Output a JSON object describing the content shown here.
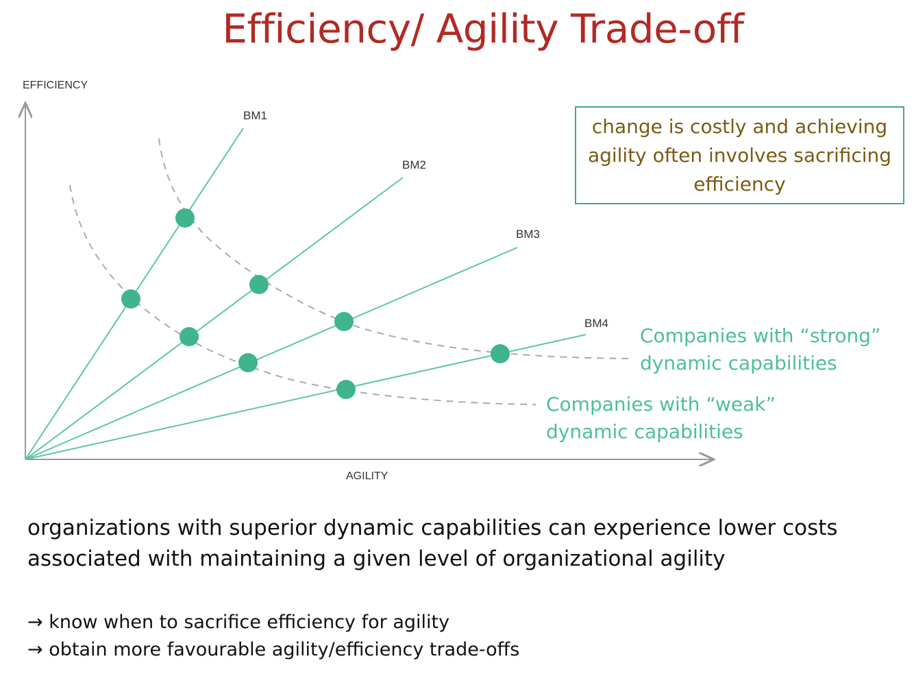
{
  "title": "Efficiency/ Agility Trade-off",
  "chart_data": {
    "type": "diagram",
    "y_axis_label": "EFFICIENCY",
    "x_axis_label": "AGILITY",
    "business_models": [
      "BM1",
      "BM2",
      "BM3",
      "BM4"
    ],
    "curves": [
      {
        "name": "Companies with “strong” dynamic capabilities",
        "style": "dashed",
        "intersects": [
          "BM1",
          "BM2",
          "BM3",
          "BM4"
        ]
      },
      {
        "name": "Companies with “weak” dynamic capabilities",
        "style": "dashed",
        "intersects": [
          "BM1",
          "BM2",
          "BM3",
          "BM4"
        ]
      }
    ],
    "colors": {
      "line": "#5cc6a6",
      "dot": "#3fb48f",
      "curve": "#aaaaaa",
      "axis": "#999999"
    }
  },
  "note_box": "change is costly and achieving agility often involves sacrificing efficiency",
  "labels": {
    "strong": "Companies with “strong”\ndynamic capabilities",
    "weak": "Companies with “weak”\ndynamic capabilities"
  },
  "body_text": "organizations with superior dynamic capabilities can experience lower costs associated with maintaining a given level of organizational agility",
  "bullets": [
    "→ know when to sacrifice efficiency for agility",
    "→ obtain more favourable agility/efficiency trade-offs"
  ],
  "colors": {
    "title": "#b22a24",
    "note_text": "#7a5b14",
    "note_border": "#3fa98c",
    "curve_label": "#4cbf98"
  }
}
